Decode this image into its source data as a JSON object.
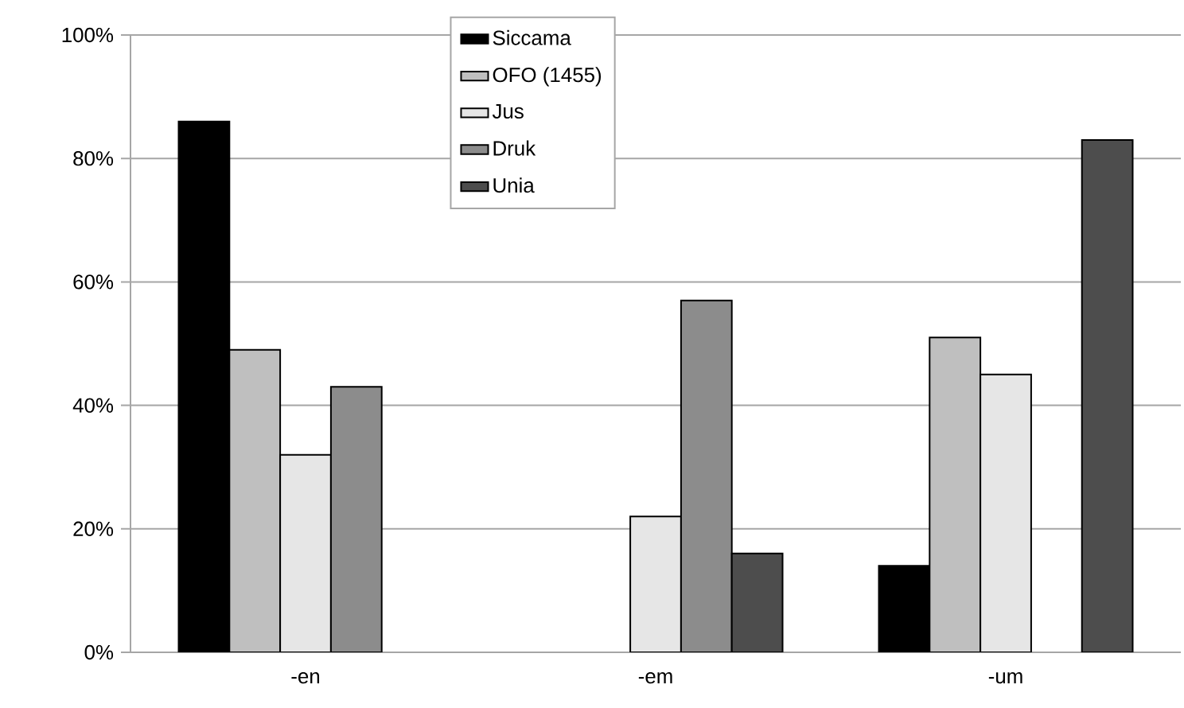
{
  "chart_data": {
    "type": "bar",
    "categories": [
      "-en",
      "-em",
      "-um"
    ],
    "series": [
      {
        "name": "Siccama",
        "color": "#000000",
        "values": [
          86,
          null,
          14
        ]
      },
      {
        "name": "OFO (1455)",
        "color": "#bfbfbf",
        "values": [
          49,
          null,
          51
        ]
      },
      {
        "name": "Jus",
        "color": "#e6e6e6",
        "values": [
          32,
          22,
          45
        ]
      },
      {
        "name": "Druk",
        "color": "#8c8c8c",
        "values": [
          43,
          57,
          null
        ]
      },
      {
        "name": "Unia",
        "color": "#4d4d4d",
        "values": [
          null,
          16,
          83
        ]
      }
    ],
    "ylim": [
      0,
      100
    ],
    "yticks": [
      {
        "value": 0,
        "label": "0%"
      },
      {
        "value": 20,
        "label": "20%"
      },
      {
        "value": 40,
        "label": "40%"
      },
      {
        "value": 60,
        "label": "60%"
      },
      {
        "value": 80,
        "label": "80%"
      },
      {
        "value": 100,
        "label": "100%"
      }
    ],
    "grid": "y",
    "legend": "top"
  }
}
